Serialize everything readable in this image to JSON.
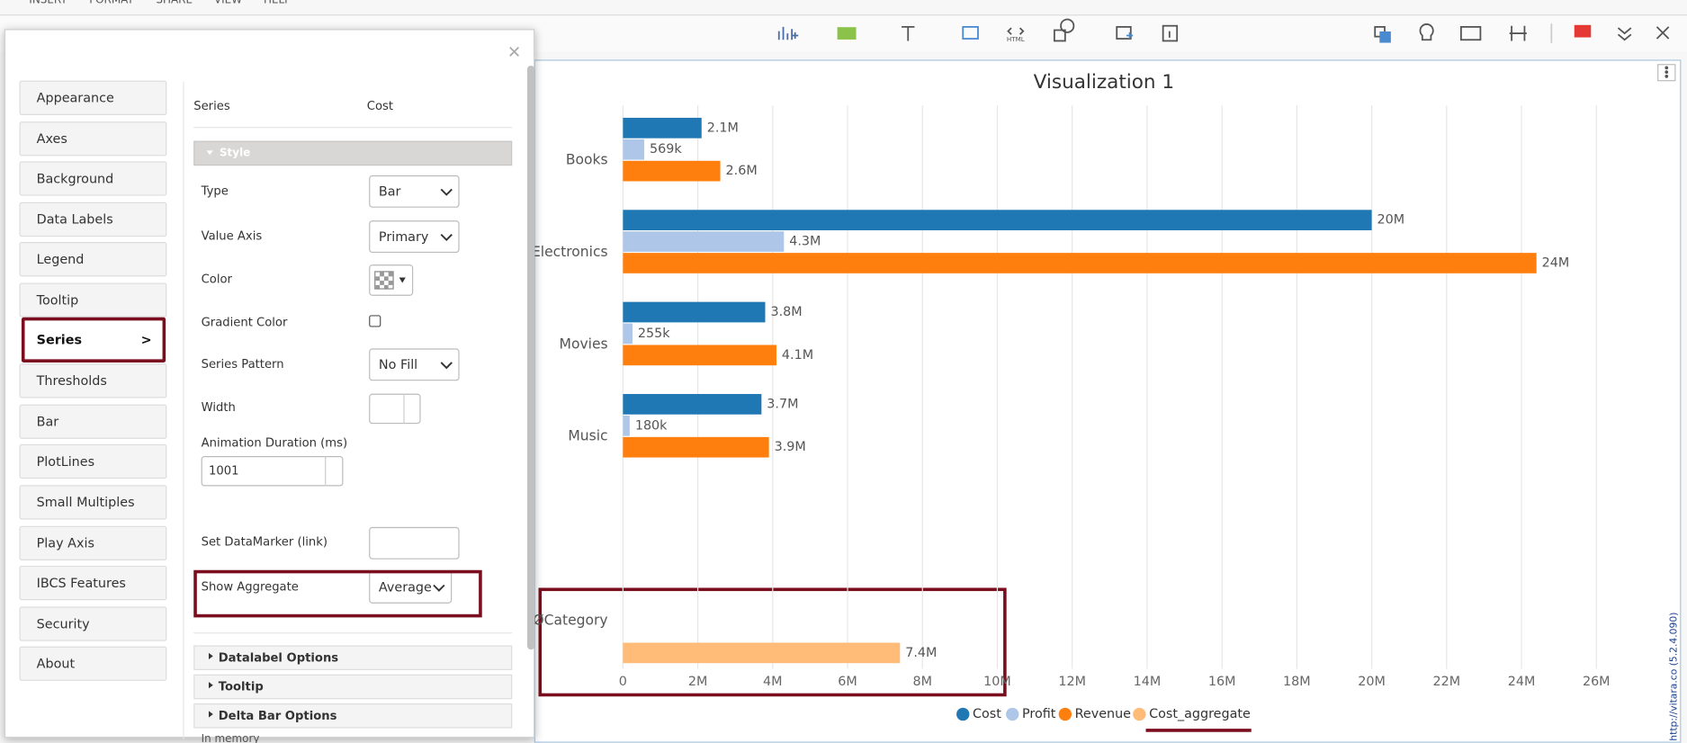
{
  "menu": [
    "INSERT",
    "FORMAT",
    "SHARE",
    "VIEW",
    "HELP"
  ],
  "toolbar": {
    "html_icon_label": "HTML"
  },
  "dialog": {
    "nav": [
      "Appearance",
      "Axes",
      "Background",
      "Data Labels",
      "Legend",
      "Tooltip",
      "Series",
      "Thresholds",
      "Bar",
      "PlotLines",
      "Small Multiples",
      "Play Axis",
      "IBCS Features",
      "Security",
      "About"
    ],
    "selected_nav": 6,
    "selected_arrow": ">",
    "series_label": "Series",
    "series_value": "Cost",
    "style_section": "Style",
    "fields": [
      {
        "label": "Type",
        "value": "Bar"
      },
      {
        "label": "Value Axis",
        "value": "Primary"
      },
      {
        "label": "Color"
      },
      {
        "label": "Gradient Color"
      },
      {
        "label": "Series Pattern",
        "value": "No Fill"
      },
      {
        "label": "Width"
      },
      {
        "label": "Animation Duration (ms)",
        "value": 1001
      },
      {
        "label": "Set DataMarker (link)"
      },
      {
        "label": "Show Aggregate",
        "value": "Average"
      }
    ],
    "sections": [
      "Datalabel Options",
      "Tooltip",
      "Delta Bar Options"
    ]
  },
  "footer_text": "In memory",
  "version_text": "http://vitara.co (5.2.4.090)",
  "chart_data": {
    "type": "bar",
    "orientation": "horizontal",
    "title": "Visualization 1",
    "categories": [
      "Books",
      "Electronics",
      "Movies",
      "Music",
      null,
      "ØCategory"
    ],
    "series": [
      {
        "name": "Cost",
        "color": "#1f77b4",
        "values": [
          2100000,
          20000000,
          3800000,
          3700000,
          null,
          null
        ],
        "value_labels": [
          "2.1M",
          "20M",
          "3.8M",
          "3.7M",
          null,
          null
        ]
      },
      {
        "name": "Profit",
        "color": "#aec7e8",
        "values": [
          569000,
          4300000,
          255000,
          180000,
          null,
          null
        ],
        "value_labels": [
          "569k",
          "4.3M",
          "255k",
          "180k",
          null,
          null
        ]
      },
      {
        "name": "Revenue",
        "color": "#ff7f0e",
        "values": [
          2600000,
          24400000,
          4100000,
          3900000,
          null,
          null
        ],
        "value_labels": [
          "2.6M",
          "24M",
          "4.1M",
          "3.9M",
          null,
          null
        ]
      },
      {
        "name": "Cost_aggregate",
        "color": "#ffbb78",
        "values": [
          null,
          null,
          null,
          null,
          null,
          7400000
        ],
        "value_labels": [
          null,
          null,
          null,
          null,
          null,
          "7.4M"
        ]
      }
    ],
    "xlim": [
      0,
      27300000
    ],
    "xticks": [
      0,
      {
        "value": 2000000,
        "label": "2M"
      },
      {
        "value": 4000000,
        "label": "4M"
      },
      {
        "value": 6000000,
        "label": "6M"
      },
      {
        "value": 8000000,
        "label": "8M"
      },
      {
        "value": 10000000,
        "label": "10M"
      },
      {
        "value": 12000000,
        "label": "12M"
      },
      {
        "value": 14000000,
        "label": "14M"
      },
      {
        "value": 16000000,
        "label": "16M"
      },
      {
        "value": 18000000,
        "label": "18M"
      },
      {
        "value": 20000000,
        "label": "20M"
      },
      {
        "value": 22000000,
        "label": "22M"
      },
      {
        "value": 24000000,
        "label": "24M"
      },
      {
        "value": 26000000,
        "label": "26M"
      }
    ],
    "grid": true,
    "legend": "bottom"
  }
}
